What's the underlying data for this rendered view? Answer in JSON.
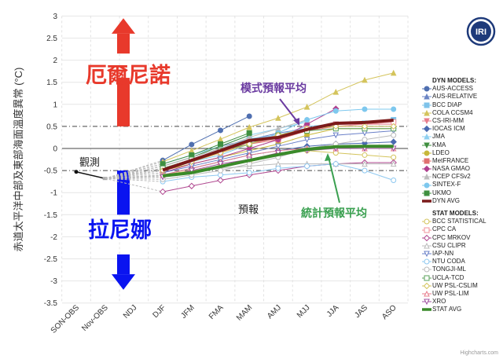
{
  "logo_text": "IRI",
  "credit": "Highcharts.com",
  "annotations": {
    "el_nino": "厄爾尼諾",
    "la_nina": "拉尼娜",
    "observed": "觀測",
    "forecast": "預報",
    "dyn_avg_label": "模式預報平均",
    "stat_avg_label": "統計預報平均"
  },
  "colors": {
    "el_nino": "#e8392b",
    "la_nina": "#0a14f0",
    "dyn_avg_label": "#6a3aa0",
    "stat_avg_label": "#3aa050"
  },
  "chart_data": {
    "type": "line",
    "ylabel": "赤道太平洋中部及東部海面溫度異常 (°C)",
    "ylim": [
      -3.5,
      3
    ],
    "yticks": [
      3,
      2.5,
      2,
      1.5,
      1,
      0.5,
      0,
      -0.5,
      -1,
      -1.5,
      -2,
      -2.5,
      -3,
      -3.5
    ],
    "threshold_lines": [
      0.5,
      -0.5
    ],
    "categories": [
      "SON-OBS",
      "Nov-OBS",
      "NDJ",
      "DJF",
      "JFM",
      "FMA",
      "MAM",
      "AMJ",
      "MJJ",
      "JJA",
      "JAS",
      "ASO"
    ],
    "observed": {
      "values": [
        -0.53,
        -0.68
      ],
      "color": "#111111"
    },
    "legend_headers": {
      "dyn": "DYN MODELS:",
      "stat": "STAT MODELS:"
    },
    "dyn_models": [
      {
        "name": "AUS-ACCESS",
        "color": "#4f6fb0",
        "marker": "circle",
        "filled": true,
        "values": [
          -0.27,
          0.09,
          0.41,
          0.73
        ]
      },
      {
        "name": "AUS-RELATIVE",
        "color": "#6a84c4",
        "marker": "triangle",
        "filled": true,
        "values": [
          -0.35,
          -0.15,
          0.05,
          0.2,
          0.35,
          0.45,
          0.5,
          0.5,
          0.5
        ]
      },
      {
        "name": "BCC DIAP",
        "color": "#7ec3ea",
        "marker": "square",
        "filled": true,
        "values": [
          -0.4,
          -0.2,
          0.0,
          0.22,
          0.3,
          0.5,
          0.55,
          0.57,
          0.65
        ]
      },
      {
        "name": "COLA CCSM4",
        "color": "#d4c45c",
        "marker": "triangle",
        "filled": true,
        "values": [
          -0.3,
          -0.05,
          0.21,
          0.48,
          0.69,
          0.94,
          1.28,
          1.55,
          1.71
        ]
      },
      {
        "name": "CS-IRI-MM",
        "color": "#e87d8c",
        "marker": "triangle-down",
        "filled": true,
        "values": [
          -0.45,
          -0.25,
          -0.05,
          0.1,
          0.25,
          0.45,
          0.55,
          0.55,
          0.55
        ]
      },
      {
        "name": "IOCAS ICM",
        "color": "#4a6ab0",
        "marker": "diamond",
        "filled": true,
        "values": [
          -0.6,
          -0.45,
          -0.3,
          -0.15,
          -0.05,
          0.05,
          0.1,
          0.12,
          0.15
        ]
      },
      {
        "name": "JMA",
        "color": "#8fd0f0",
        "marker": "triangle",
        "filled": true,
        "values": [
          -0.35,
          -0.15,
          0.05,
          0.3,
          0.45,
          0.6
        ]
      },
      {
        "name": "KMA",
        "color": "#3f8f3f",
        "marker": "triangle-down",
        "filled": true,
        "values": [
          -0.4,
          -0.2,
          0.05,
          0.3
        ]
      },
      {
        "name": "LDEO",
        "color": "#c8b83a",
        "marker": "circle",
        "filled": true,
        "values": [
          -0.5,
          -0.35,
          -0.2,
          -0.05,
          0.1,
          0.3,
          0.45,
          0.45,
          0.45
        ]
      },
      {
        "name": "MetFRANCE",
        "color": "#e07070",
        "marker": "square",
        "filled": true,
        "values": [
          -0.45,
          -0.3,
          -0.1,
          0.1,
          0.2,
          0.4,
          0.5
        ]
      },
      {
        "name": "NASA GMAO",
        "color": "#b0408f",
        "marker": "diamond",
        "filled": true,
        "values": [
          -0.55,
          -0.35,
          -0.2,
          0.0,
          0.2,
          0.55,
          0.9
        ]
      },
      {
        "name": "NCEP CFSv2",
        "color": "#bdbdbd",
        "marker": "triangle",
        "filled": true,
        "values": [
          -0.4,
          -0.2,
          0.0,
          0.25,
          0.45,
          0.65
        ]
      },
      {
        "name": "SINTEX-F",
        "color": "#7ec8ee",
        "marker": "circle",
        "filled": true,
        "values": [
          -0.45,
          -0.3,
          -0.15,
          0.1,
          0.35,
          0.65,
          0.85,
          0.89,
          0.89
        ]
      },
      {
        "name": "UKMO",
        "color": "#3f9040",
        "marker": "square",
        "filled": true,
        "values": [
          -0.35,
          -0.15,
          0.1,
          0.35
        ]
      },
      {
        "name": "DYN AVG",
        "color": "#7b1a1a",
        "marker": "none",
        "avg": true,
        "values": [
          -0.49,
          -0.27,
          -0.05,
          0.18,
          0.25,
          0.43,
          0.57,
          0.59,
          0.64
        ]
      }
    ],
    "stat_models": [
      {
        "name": "BCC STATISTICAL",
        "color": "#d4c45c",
        "marker": "circle",
        "filled": false,
        "values": [
          -0.6,
          -0.5,
          -0.4,
          -0.3,
          -0.15,
          -0.05,
          -0.1,
          -0.15,
          -0.2
        ]
      },
      {
        "name": "CPC CA",
        "color": "#f0909a",
        "marker": "square",
        "filled": false,
        "values": [
          -0.5,
          -0.3,
          -0.1,
          0.15,
          0.3,
          0.45,
          0.5,
          0.55,
          0.6
        ]
      },
      {
        "name": "CPC MRKOV",
        "color": "#b04890",
        "marker": "diamond",
        "filled": false,
        "values": [
          -0.98,
          -0.85,
          -0.72,
          -0.6,
          -0.5,
          -0.4,
          -0.35,
          -0.32,
          -0.32
        ]
      },
      {
        "name": "CSU CLIPR",
        "color": "#bbbbbb",
        "marker": "triangle",
        "filled": false,
        "values": [
          -0.65,
          -0.55,
          -0.45,
          -0.4,
          -0.35,
          -0.35,
          -0.35,
          -0.35,
          -0.35
        ]
      },
      {
        "name": "IAP-NN",
        "color": "#6a80c8",
        "marker": "triangle-down",
        "filled": false,
        "values": [
          -0.55,
          -0.4,
          -0.25,
          -0.1,
          0.05,
          0.2,
          0.3,
          0.35,
          0.4
        ]
      },
      {
        "name": "NTU CODA",
        "color": "#8ec8f0",
        "marker": "circle",
        "filled": false,
        "values": [
          -0.75,
          -0.65,
          -0.6,
          -0.55,
          -0.45,
          -0.4,
          -0.35,
          -0.5,
          -0.72
        ]
      },
      {
        "name": "TONGJI-ML",
        "color": "#bbbbbb",
        "marker": "circle",
        "filled": false,
        "values": [
          -0.7,
          -0.6,
          -0.5,
          -0.35,
          -0.2,
          0.0,
          0.1,
          0.2,
          0.3
        ]
      },
      {
        "name": "UCLA-TCD",
        "color": "#5aa05a",
        "marker": "square",
        "filled": false,
        "values": [
          -0.45,
          -0.25,
          -0.05,
          0.1,
          0.3,
          0.4,
          0.45,
          0.45,
          0.45
        ]
      },
      {
        "name": "UW PSL-CSLIM",
        "color": "#d4c45c",
        "marker": "diamond",
        "filled": false,
        "values": [
          -0.5,
          -0.3,
          -0.1,
          0.1,
          0.3,
          0.45,
          0.5,
          0.5,
          0.5
        ]
      },
      {
        "name": "UW PSL-LIM",
        "color": "#e87d8c",
        "marker": "triangle",
        "filled": false,
        "values": [
          -0.6,
          -0.45,
          -0.3,
          -0.15,
          -0.05,
          0.0,
          0.0,
          0.0,
          0.0
        ]
      },
      {
        "name": "XRO",
        "color": "#a050a0",
        "marker": "triangle-down",
        "filled": false,
        "values": [
          -0.65,
          -0.5,
          -0.35,
          -0.25,
          -0.1,
          -0.05,
          0.0,
          0.0,
          0.0
        ]
      },
      {
        "name": "STAT AVG",
        "color": "#3a8a2a",
        "marker": "none",
        "avg": true,
        "values": [
          -0.62,
          -0.55,
          -0.41,
          -0.27,
          -0.14,
          -0.02,
          0.04,
          0.05,
          0.05
        ]
      }
    ]
  }
}
